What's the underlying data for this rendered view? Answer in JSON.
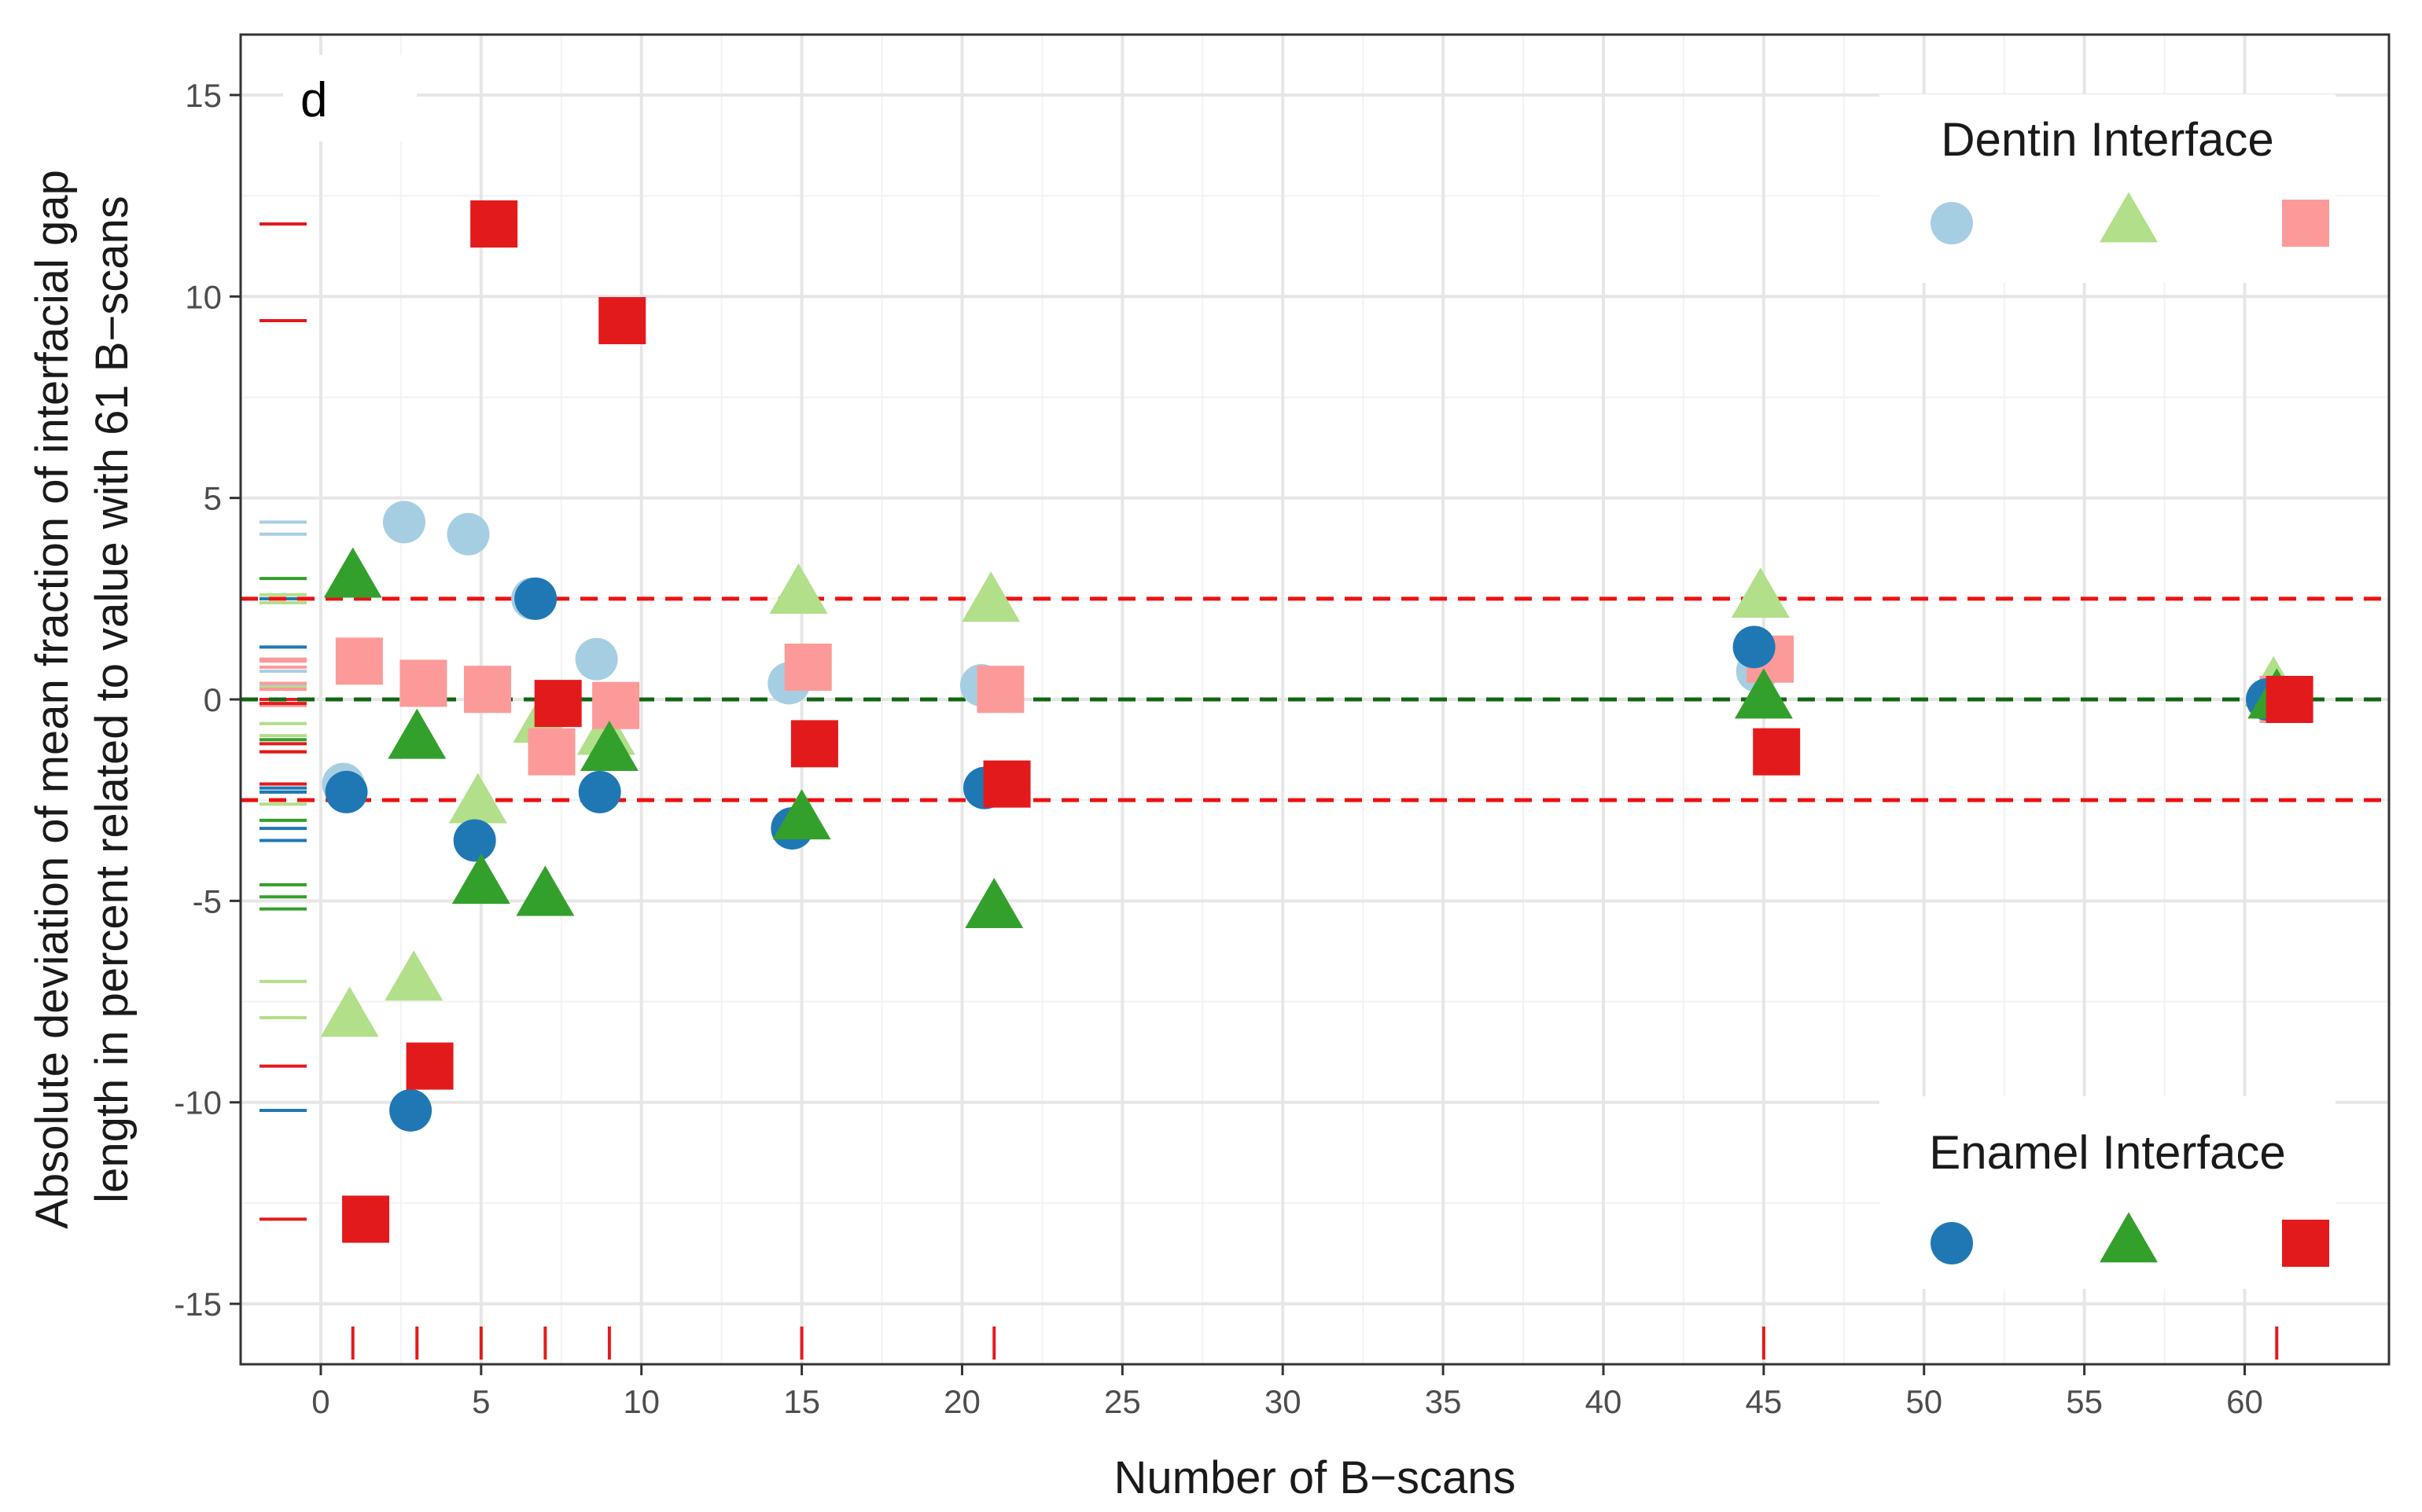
{
  "chart_data": {
    "type": "scatter",
    "panel_label": "d",
    "xlabel": "Number of B−scans",
    "ylabel_lines": [
      "Absolute deviation of mean fraction of interfacial gap",
      "length in percent related to value with 61 B−scans"
    ],
    "xlim": [
      -2.5,
      64.5
    ],
    "ylim": [
      -16.5,
      16.5
    ],
    "x_ticks": [
      0,
      5,
      10,
      15,
      20,
      25,
      30,
      35,
      40,
      45,
      50,
      55,
      60
    ],
    "y_ticks": [
      15,
      10,
      5,
      0,
      -5,
      -10,
      -15
    ],
    "x_tick_labels": [
      "0",
      "5",
      "10",
      "15",
      "20",
      "25",
      "30",
      "35",
      "40",
      "45",
      "50",
      "55",
      "60"
    ],
    "y_tick_labels": [
      "15",
      "10",
      "5",
      "0",
      "-5",
      "-10",
      "-15"
    ],
    "grid": true,
    "reference_lines": [
      {
        "y": 2.5,
        "color": "#ee1111",
        "style": "dashed"
      },
      {
        "y": -2.5,
        "color": "#ee1111",
        "style": "dashed"
      },
      {
        "y": 0,
        "color": "#116611",
        "style": "dashed"
      }
    ],
    "rug_x": [
      1,
      3,
      5,
      7,
      9,
      15,
      21,
      45,
      61
    ],
    "series": [
      {
        "name": "Dentin circle",
        "group": "Dentin Interface",
        "shape": "circle",
        "color": "#a6cee3",
        "points": [
          [
            0.7,
            -2.1
          ],
          [
            2.6,
            4.4
          ],
          [
            4.6,
            4.1
          ],
          [
            6.6,
            2.5
          ],
          [
            8.6,
            1.0
          ],
          [
            14.6,
            0.4
          ],
          [
            20.6,
            0.35
          ],
          [
            44.8,
            0.7
          ],
          [
            60.8,
            0.0
          ]
        ]
      },
      {
        "name": "Dentin triangle",
        "group": "Dentin Interface",
        "shape": "triangle",
        "color": "#b2df8a",
        "points": [
          [
            0.9,
            -7.9
          ],
          [
            2.9,
            -7.0
          ],
          [
            4.9,
            -2.6
          ],
          [
            6.9,
            -0.6
          ],
          [
            8.9,
            -0.9
          ],
          [
            14.9,
            2.6
          ],
          [
            20.9,
            2.4
          ],
          [
            44.9,
            2.5
          ],
          [
            60.9,
            0.3
          ]
        ]
      },
      {
        "name": "Dentin square",
        "group": "Dentin Interface",
        "shape": "square",
        "color": "#fb9a99",
        "points": [
          [
            1.2,
            0.95
          ],
          [
            3.2,
            0.4
          ],
          [
            5.2,
            0.25
          ],
          [
            7.2,
            -1.3
          ],
          [
            9.2,
            -0.15
          ],
          [
            15.2,
            0.8
          ],
          [
            21.2,
            0.25
          ],
          [
            45.2,
            1.0
          ],
          [
            61.2,
            0.0
          ]
        ]
      },
      {
        "name": "Enamel circle",
        "group": "Enamel Interface",
        "shape": "circle",
        "color": "#1f78b4",
        "points": [
          [
            0.8,
            -2.3
          ],
          [
            2.8,
            -10.2
          ],
          [
            4.8,
            -3.5
          ],
          [
            6.7,
            2.5
          ],
          [
            8.7,
            -2.3
          ],
          [
            14.7,
            -3.2
          ],
          [
            20.7,
            -2.2
          ],
          [
            44.7,
            1.3
          ],
          [
            60.7,
            0.0
          ]
        ]
      },
      {
        "name": "Enamel triangle",
        "group": "Enamel Interface",
        "shape": "triangle",
        "color": "#33a02c",
        "points": [
          [
            1.0,
            3.0
          ],
          [
            3.0,
            -1.0
          ],
          [
            5.0,
            -4.6
          ],
          [
            7.0,
            -4.9
          ],
          [
            9.0,
            -1.3
          ],
          [
            15.0,
            -3.0
          ],
          [
            21.0,
            -5.2
          ],
          [
            45.0,
            0.0
          ],
          [
            61.0,
            0.0
          ]
        ]
      },
      {
        "name": "Enamel square",
        "group": "Enamel Interface",
        "shape": "square",
        "color": "#e31a1c",
        "points": [
          [
            1.4,
            -12.9
          ],
          [
            3.4,
            -9.1
          ],
          [
            5.4,
            11.8
          ],
          [
            7.4,
            -0.1
          ],
          [
            9.4,
            9.4
          ],
          [
            15.4,
            -1.1
          ],
          [
            21.4,
            -2.1
          ],
          [
            45.4,
            -1.3
          ],
          [
            61.4,
            0.0
          ]
        ]
      }
    ],
    "legends": [
      {
        "title": "Dentin Interface",
        "placement": "top-right",
        "keys": [
          {
            "shape": "circle",
            "color": "#a6cee3"
          },
          {
            "shape": "triangle",
            "color": "#b2df8a"
          },
          {
            "shape": "square",
            "color": "#fb9a99"
          }
        ]
      },
      {
        "title": "Enamel Interface",
        "placement": "bottom-right",
        "keys": [
          {
            "shape": "circle",
            "color": "#1f78b4"
          },
          {
            "shape": "triangle",
            "color": "#33a02c"
          },
          {
            "shape": "square",
            "color": "#e31a1c"
          }
        ]
      }
    ]
  }
}
